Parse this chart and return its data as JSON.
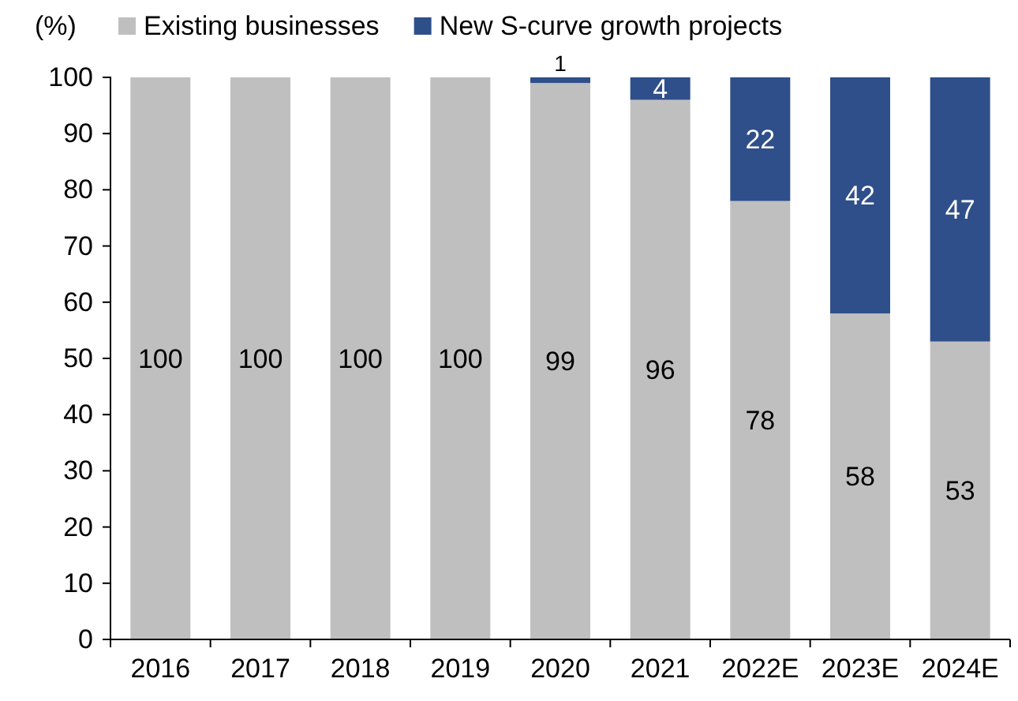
{
  "chart_data": {
    "type": "bar",
    "stacked": true,
    "ylabel": "(%)",
    "categories": [
      "2016",
      "2017",
      "2018",
      "2019",
      "2020",
      "2021",
      "2022E",
      "2023E",
      "2024E"
    ],
    "ylim": [
      0,
      100
    ],
    "yticks": [
      0,
      10,
      20,
      30,
      40,
      50,
      60,
      70,
      80,
      90,
      100
    ],
    "legend": "top",
    "grid": false,
    "series": [
      {
        "name": "Existing businesses",
        "color": "#bfbfbf",
        "values": [
          100,
          100,
          100,
          100,
          99,
          96,
          78,
          58,
          53
        ],
        "value_labels": [
          "100",
          "100",
          "100",
          "100",
          "99",
          "96",
          "78",
          "58",
          "53"
        ]
      },
      {
        "name": "New S-curve growth projects",
        "color": "#2f4f8a",
        "values": [
          0,
          0,
          0,
          0,
          1,
          4,
          22,
          42,
          47
        ],
        "value_labels": [
          null,
          null,
          null,
          null,
          "1",
          "4",
          "22",
          "42",
          "47"
        ]
      }
    ]
  }
}
